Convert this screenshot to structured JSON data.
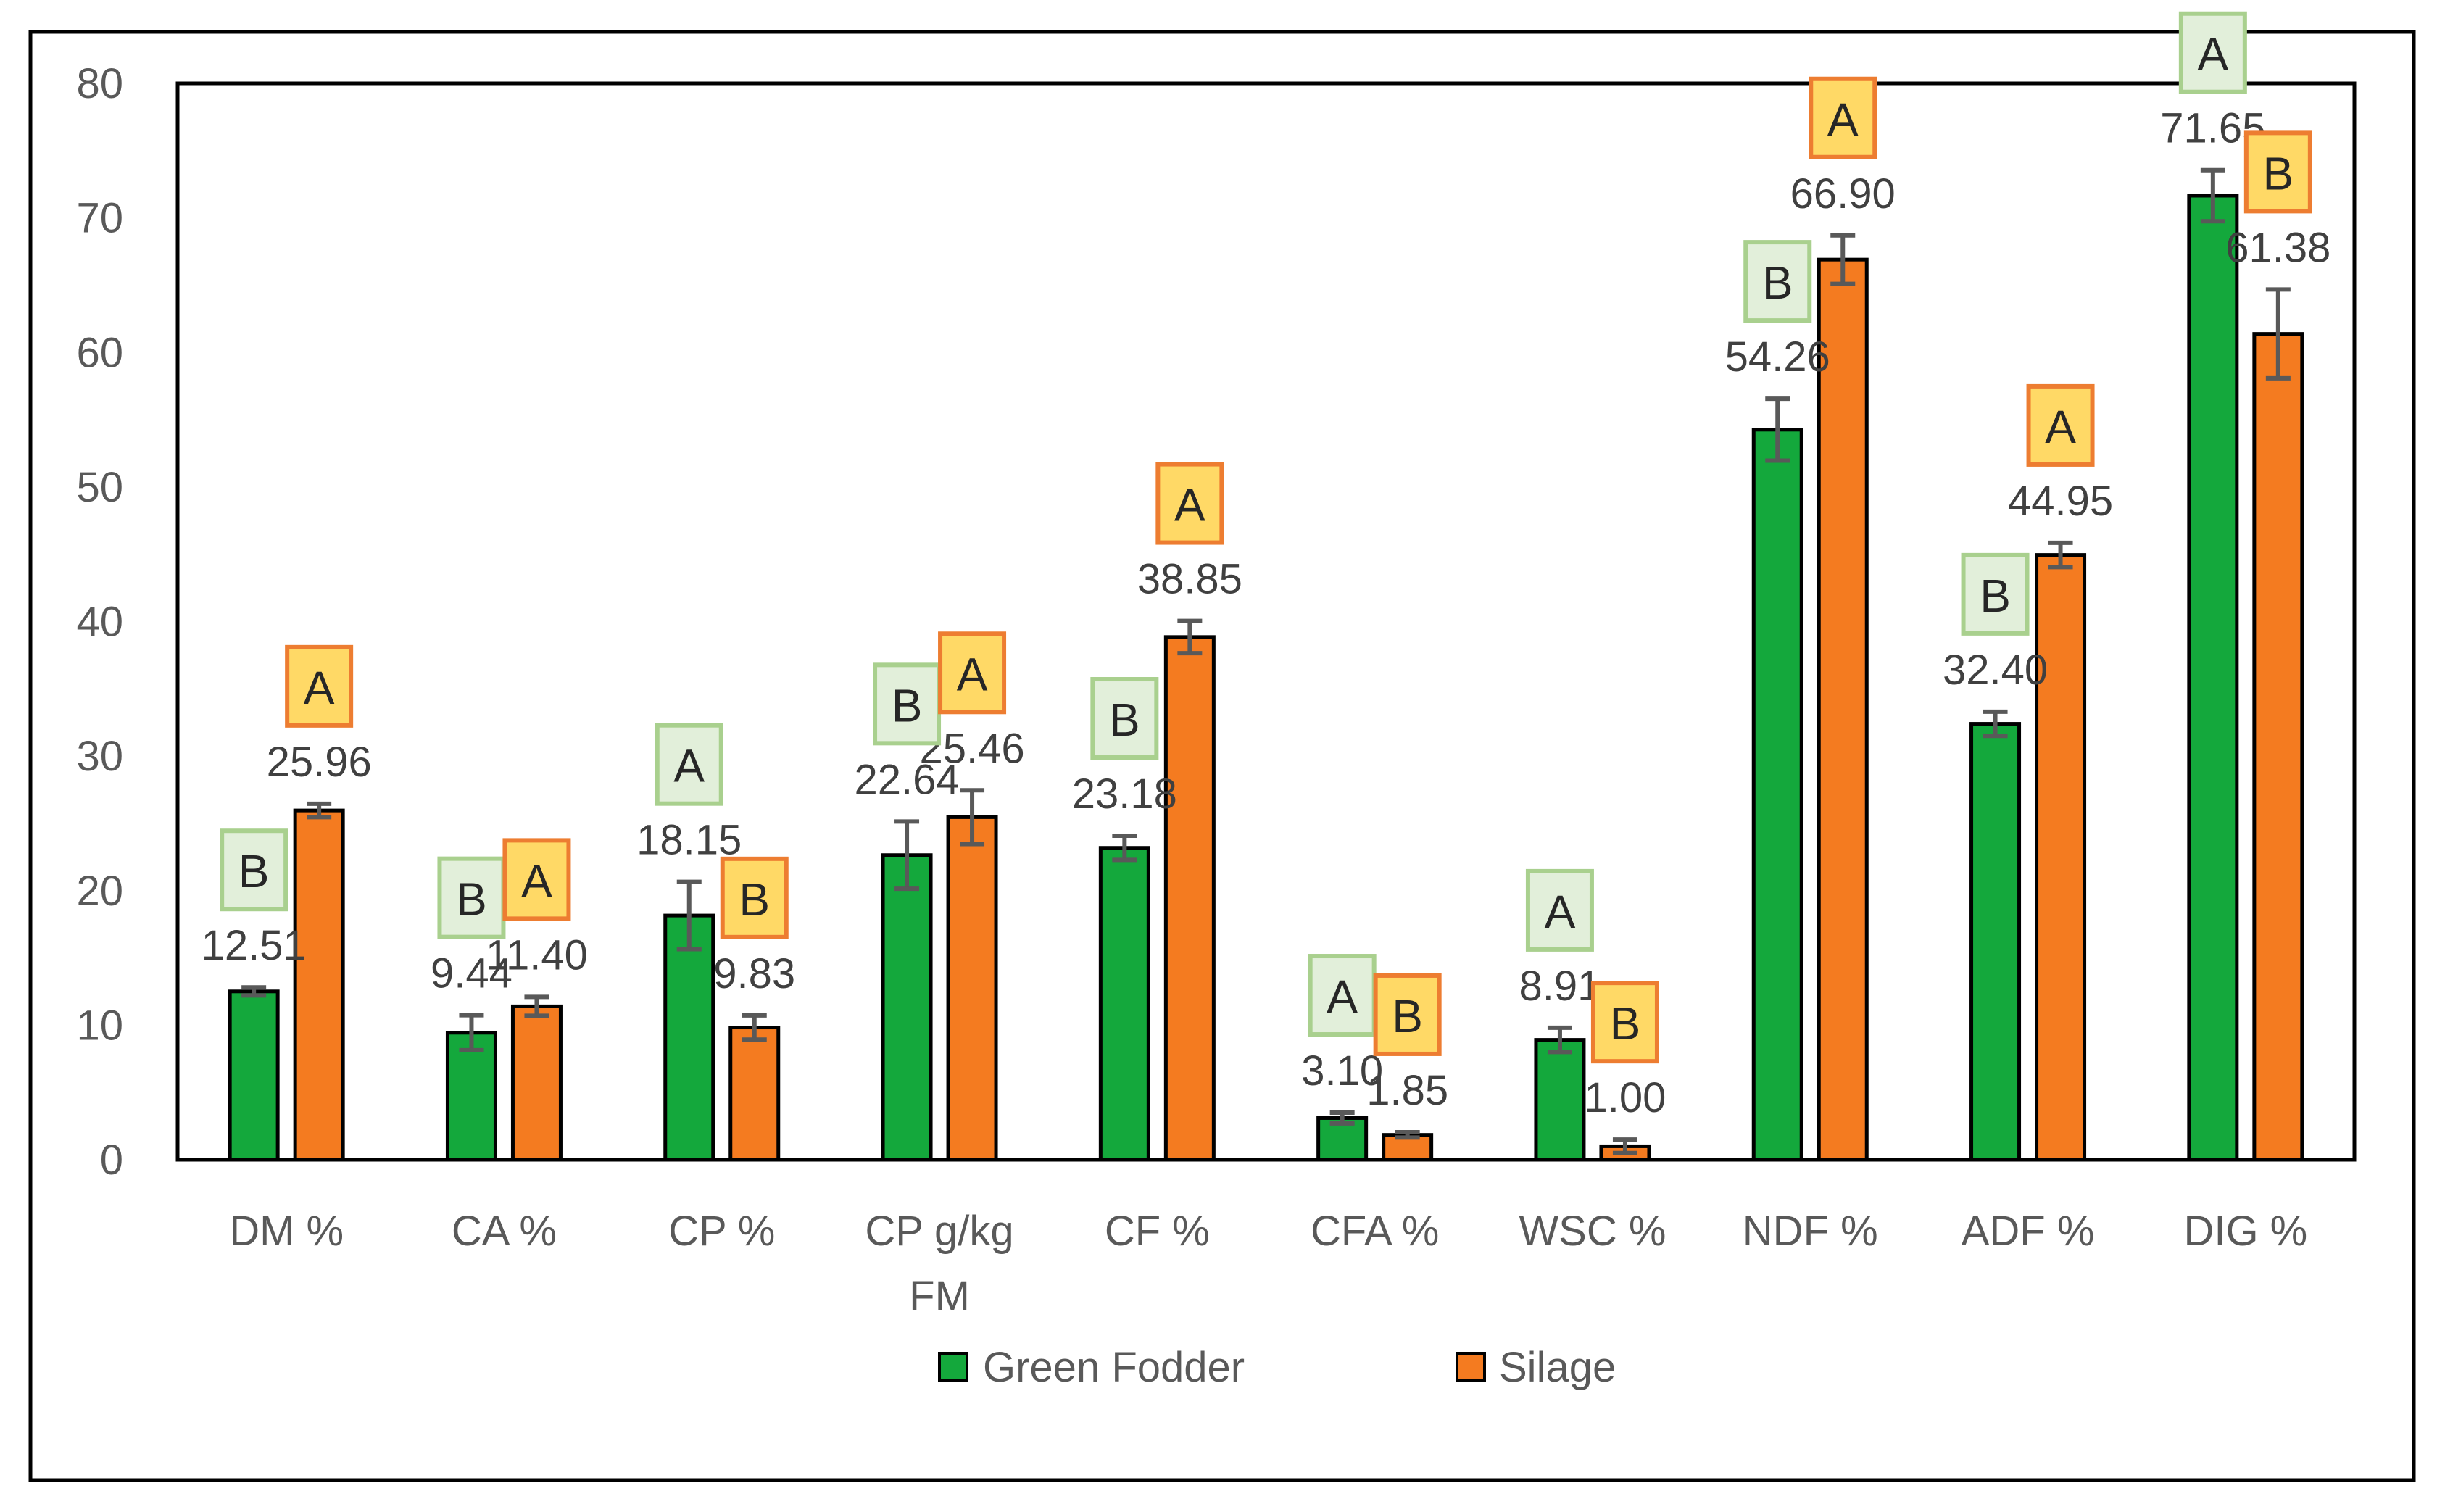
{
  "chart_data": {
    "type": "bar",
    "title": "",
    "xlabel": "",
    "ylabel": "",
    "ylim": [
      0,
      80
    ],
    "yticks": [
      "0",
      "10",
      "20",
      "30",
      "40",
      "50",
      "60",
      "70",
      "80"
    ],
    "grid": false,
    "legend_position": "bottom",
    "categories": [
      "DM %",
      "CA %",
      "CP %",
      "CP g/kg FM",
      "CF %",
      "CFA %",
      "WSC %",
      "NDF %",
      "ADF %",
      "DIG %"
    ],
    "series": [
      {
        "name": "Green Fodder",
        "color": "#14a83c",
        "box_fill": "#e2efda",
        "box_stroke": "#a9d08e",
        "values": [
          12.51,
          9.44,
          18.15,
          22.64,
          23.18,
          3.1,
          8.91,
          54.26,
          32.4,
          71.65
        ],
        "labels": [
          "12.51",
          "9.44",
          "18.15",
          "22.64",
          "23.18",
          "3.10",
          "8.91",
          "54.26",
          "32.40",
          "71.65"
        ],
        "errors": [
          0.3,
          1.3,
          2.5,
          2.5,
          0.9,
          0.4,
          0.9,
          2.3,
          0.9,
          1.9
        ],
        "letters": [
          "B",
          "B",
          "A",
          "B",
          "B",
          "A",
          "A",
          "B",
          "B",
          "A"
        ]
      },
      {
        "name": "Silage",
        "color": "#f47b20",
        "box_fill": "#ffd966",
        "box_stroke": "#ed7d31",
        "values": [
          25.96,
          11.4,
          9.83,
          25.46,
          38.85,
          1.85,
          1.0,
          66.9,
          44.95,
          61.38
        ],
        "labels": [
          "25.96",
          "11.40",
          "9.83",
          "25.46",
          "38.85",
          "1.85",
          "1.00",
          "66.90",
          "44.95",
          "61.38"
        ],
        "errors": [
          0.5,
          0.7,
          0.9,
          2.0,
          1.2,
          0.2,
          0.5,
          1.8,
          0.9,
          3.3
        ],
        "letters": [
          "A",
          "A",
          "B",
          "A",
          "A",
          "B",
          "B",
          "A",
          "A",
          "B"
        ]
      }
    ]
  }
}
